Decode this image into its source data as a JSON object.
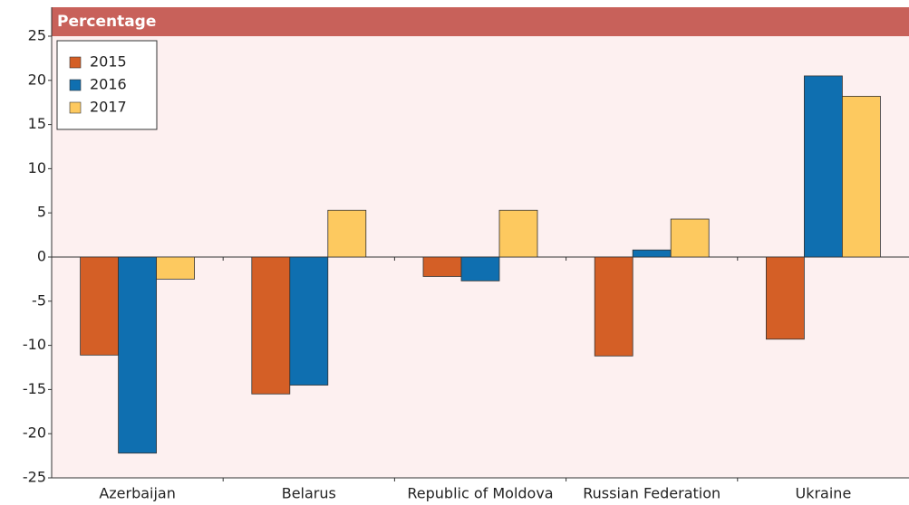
{
  "chart_data": {
    "type": "bar",
    "title": "Percentage",
    "categories": [
      "Azerbaijan",
      "Belarus",
      "Republic of Moldova",
      "Russian Federation",
      "Ukraine"
    ],
    "series": [
      {
        "name": "2015",
        "color": "#d45f26",
        "values": [
          -11.1,
          -15.5,
          -2.2,
          -11.2,
          -9.3
        ]
      },
      {
        "name": "2016",
        "color": "#0f6fb0",
        "values": [
          -22.2,
          -14.5,
          -2.7,
          0.8,
          20.5
        ]
      },
      {
        "name": "2017",
        "color": "#fdc95f",
        "values": [
          -2.5,
          5.3,
          5.3,
          4.3,
          18.2
        ]
      }
    ],
    "ylim": [
      -25,
      25
    ],
    "yticks": [
      -25,
      -20,
      -15,
      -10,
      -5,
      0,
      5,
      10,
      15,
      20,
      25
    ],
    "legend": "top-left"
  }
}
